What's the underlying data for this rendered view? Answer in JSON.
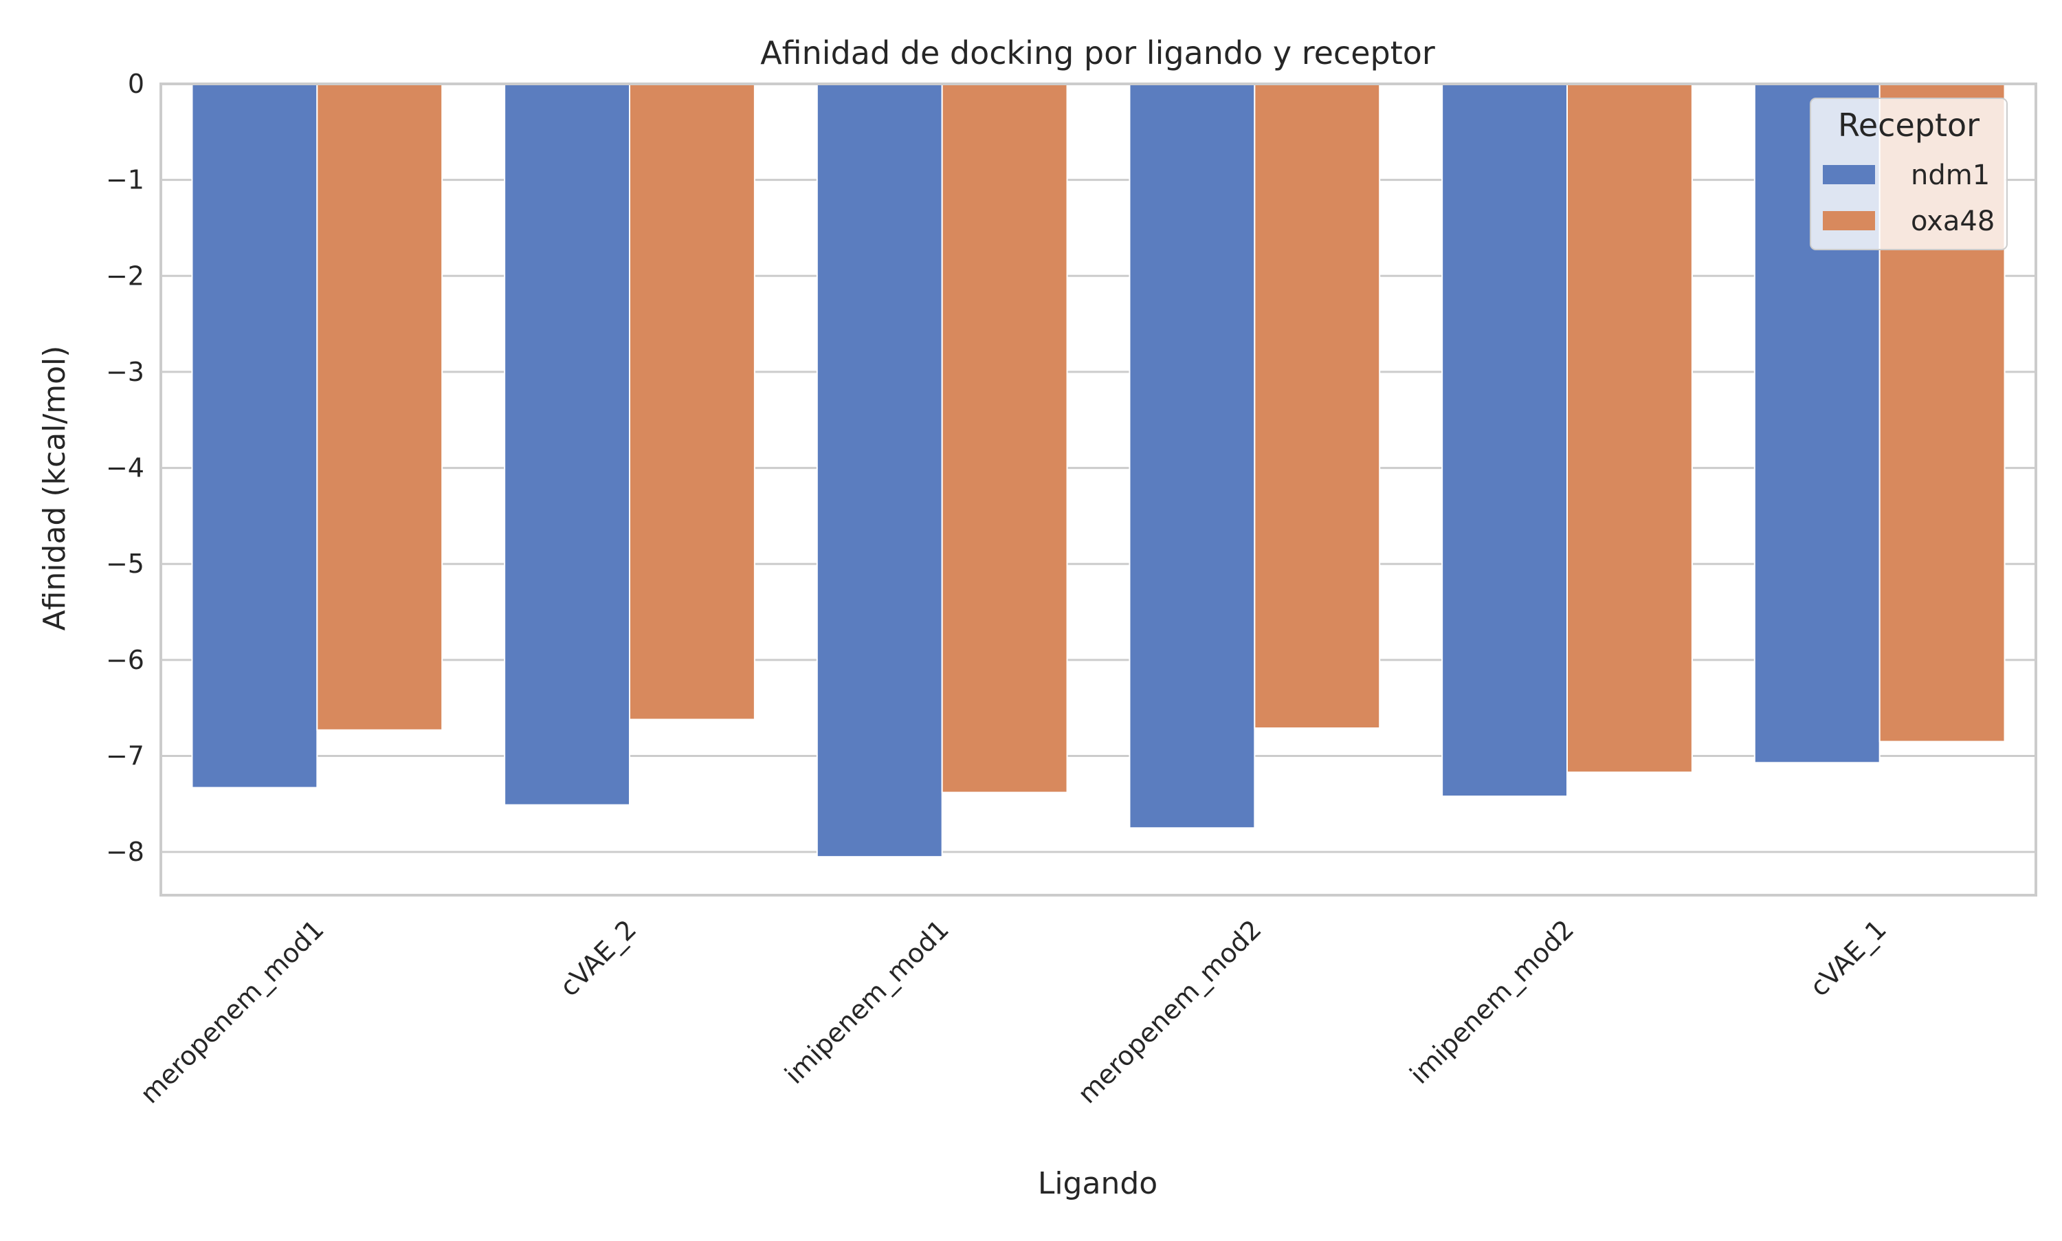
{
  "chart_data": {
    "type": "bar",
    "title": "Afinidad de docking por ligando y receptor",
    "xlabel": "Ligando",
    "ylabel": "Afinidad (kcal/mol)",
    "categories": [
      "meropenem_mod1",
      "cVAE_2",
      "imipenem_mod1",
      "meropenem_mod2",
      "imipenem_mod2",
      "cVAE_1"
    ],
    "series": [
      {
        "name": "ndm1",
        "color": "#5b7dbf",
        "values": [
          -7.33,
          -7.51,
          -8.05,
          -7.75,
          -7.42,
          -7.07
        ]
      },
      {
        "name": "oxa48",
        "color": "#d8895d",
        "values": [
          -6.73,
          -6.62,
          -7.38,
          -6.71,
          -7.17,
          -6.85
        ]
      }
    ],
    "ylim": [
      -8.45,
      0
    ],
    "yticks": [
      0,
      -1,
      -2,
      -3,
      -4,
      -5,
      -6,
      -7,
      -8
    ],
    "ytick_labels": [
      "0",
      "−1",
      "−2",
      "−3",
      "−4",
      "−5",
      "−6",
      "−7",
      "−8"
    ],
    "grid": true,
    "legend": {
      "title": "Receptor",
      "placement": "top-right"
    }
  }
}
